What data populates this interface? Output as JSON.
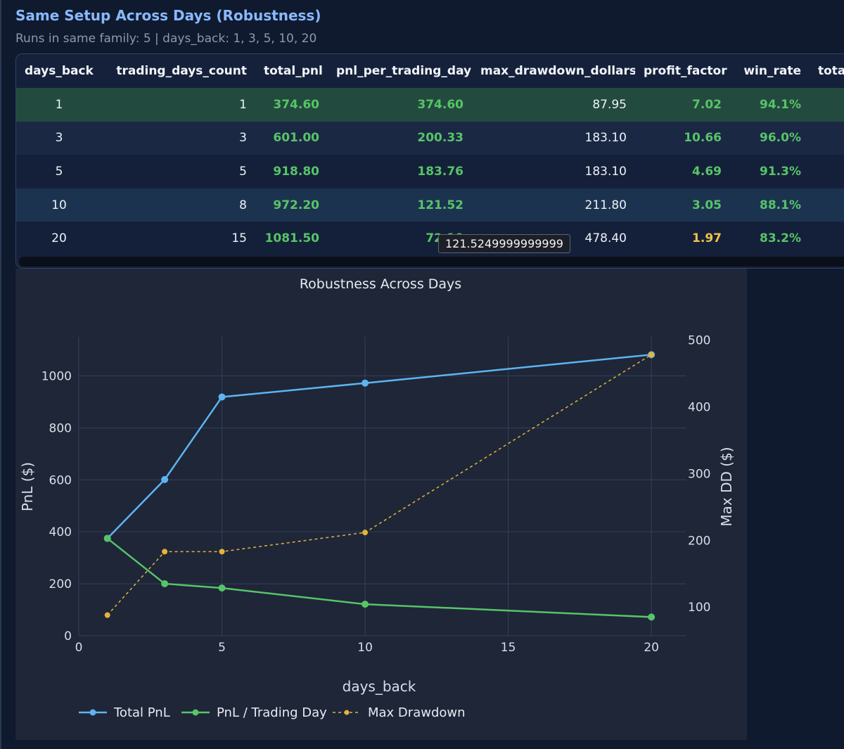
{
  "section": {
    "title": "Same Setup Across Days (Robustness)",
    "subtitle": "Runs in same family: 5 | days_back: 1, 3, 5, 10, 20"
  },
  "table": {
    "columns": [
      "days_back",
      "trading_days_count",
      "total_pnl",
      "pnl_per_trading_day",
      "max_drawdown_dollars",
      "profit_factor",
      "win_rate",
      "total_tra"
    ],
    "rows": [
      {
        "days_back": "1",
        "trading_days_count": "1",
        "total_pnl": "374.60",
        "pnl_per_trading_day": "374.60",
        "max_drawdown_dollars": "87.95",
        "profit_factor": "7.02",
        "win_rate": "94.1%",
        "total_tra": ""
      },
      {
        "days_back": "3",
        "trading_days_count": "3",
        "total_pnl": "601.00",
        "pnl_per_trading_day": "200.33",
        "max_drawdown_dollars": "183.10",
        "profit_factor": "10.66",
        "win_rate": "96.0%",
        "total_tra": ""
      },
      {
        "days_back": "5",
        "trading_days_count": "5",
        "total_pnl": "918.80",
        "pnl_per_trading_day": "183.76",
        "max_drawdown_dollars": "183.10",
        "profit_factor": "4.69",
        "win_rate": "91.3%",
        "total_tra": ""
      },
      {
        "days_back": "10",
        "trading_days_count": "8",
        "total_pnl": "972.20",
        "pnl_per_trading_day": "121.52",
        "max_drawdown_dollars": "211.80",
        "profit_factor": "3.05",
        "win_rate": "88.1%",
        "total_tra": ""
      },
      {
        "days_back": "20",
        "trading_days_count": "15",
        "total_pnl": "1081.50",
        "pnl_per_trading_day": "72.10",
        "max_drawdown_dollars": "478.40",
        "profit_factor": "1.97",
        "win_rate": "83.2%",
        "total_tra": ""
      }
    ],
    "tooltip": "121.5249999999999"
  },
  "chart_data": {
    "type": "line",
    "title": "Robustness Across Days",
    "xlabel": "days_back",
    "ylabel": "PnL ($)",
    "y2label": "Max DD ($)",
    "x": [
      1,
      3,
      5,
      10,
      20
    ],
    "xlim": [
      0,
      21.2
    ],
    "ylim": [
      0,
      1150
    ],
    "y2lim": [
      57,
      505
    ],
    "xticks": [
      0,
      5,
      10,
      15,
      20
    ],
    "yticks": [
      0,
      200,
      400,
      600,
      800,
      1000
    ],
    "y2ticks": [
      100,
      200,
      300,
      400,
      500
    ],
    "grid": true,
    "legend_position": "bottom-left",
    "series": [
      {
        "name": "Total PnL",
        "axis": "y",
        "values": [
          374.6,
          601.0,
          918.8,
          972.2,
          1081.5
        ],
        "color": "#5db4f0",
        "dash": false
      },
      {
        "name": "PnL / Trading Day",
        "axis": "y",
        "values": [
          374.6,
          200.33,
          183.76,
          121.52,
          72.1
        ],
        "color": "#57c468",
        "dash": false
      },
      {
        "name": "Max Drawdown",
        "axis": "y2",
        "values": [
          87.95,
          183.1,
          183.1,
          211.8,
          478.4
        ],
        "color": "#e6b33a",
        "dash": true
      }
    ]
  },
  "colors": {
    "accent": "#8ab8ff",
    "positive": "#57c468",
    "warning": "#f0c24b",
    "background": "#0f1a2e"
  }
}
